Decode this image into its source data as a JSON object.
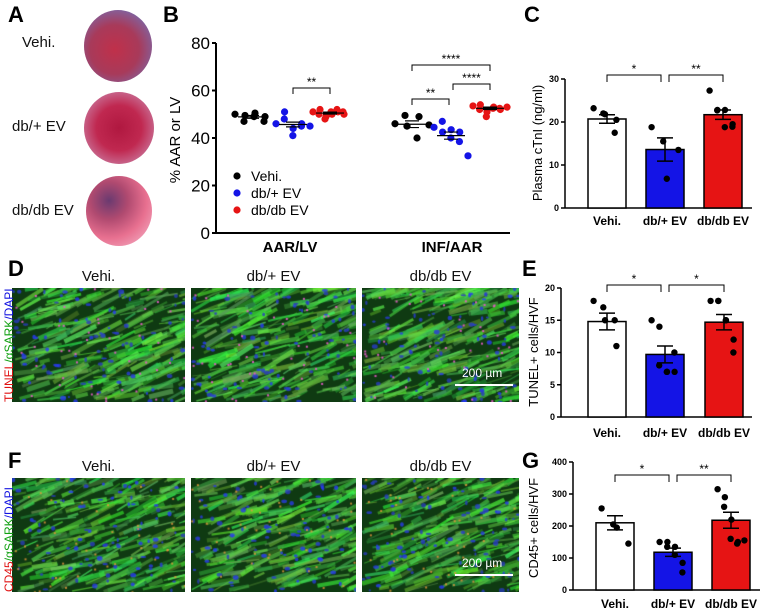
{
  "panels": {
    "A": "A",
    "B": "B",
    "C": "C",
    "D": "D",
    "E": "E",
    "F": "F",
    "G": "G"
  },
  "panel_a": {
    "rows": [
      "Vehi.",
      "db/+ EV",
      "db/db EV"
    ]
  },
  "panel_d": {
    "titles": [
      "Vehi.",
      "db/+ EV",
      "db/db EV"
    ],
    "stain": [
      "TUNEL",
      "/αSARK",
      "/DAPI"
    ],
    "scale": "200 µm"
  },
  "panel_f": {
    "titles": [
      "Vehi.",
      "db/+ EV",
      "db/db EV"
    ],
    "stain": [
      "CD45",
      "/αSARK",
      "/DAPI"
    ],
    "scale": "200 µm"
  },
  "colors": {
    "vehi": "#000000",
    "dbplus": "#1414e6",
    "dbdb": "#e61414"
  },
  "chart_data": [
    {
      "panel": "B",
      "type": "scatter",
      "ylabel": "% AAR or LV",
      "ylim": [
        0,
        80
      ],
      "yticks": [
        0,
        20,
        40,
        60,
        80
      ],
      "categories": [
        "AAR/LV",
        "INF/AAR"
      ],
      "legend": [
        "Vehi.",
        "db/+ EV",
        "db/db EV"
      ],
      "legend_position": "bottom-left",
      "series": [
        {
          "name": "Vehi.",
          "groups": [
            {
              "points": [
                50,
                47,
                49.5,
                49,
                50.5,
                47,
                49
              ],
              "mean": 48.9,
              "sem": 0.6
            },
            {
              "points": [
                46,
                49.5,
                45,
                40,
                49,
                45.5
              ],
              "mean": 45.8,
              "sem": 1.4
            }
          ]
        },
        {
          "name": "db/+ EV",
          "groups": [
            {
              "points": [
                46,
                48,
                51,
                41,
                44,
                45,
                46,
                45
              ],
              "mean": 45.7,
              "sem": 1.0
            },
            {
              "points": [
                44.5,
                47,
                42.5,
                40,
                43.5,
                38.5,
                42.5,
                32.5
              ],
              "mean": 41,
              "sem": 1.5
            }
          ]
        },
        {
          "name": "db/db EV",
          "groups": [
            {
              "points": [
                51,
                52,
                50,
                49,
                48,
                50,
                51,
                51,
                52,
                50,
                51
              ],
              "mean": 50.5,
              "sem": 0.4
            },
            {
              "points": [
                53.5,
                54,
                52,
                51,
                49,
                53,
                52.5,
                52,
                52.5,
                53
              ],
              "mean": 52.5,
              "sem": 0.5
            }
          ]
        }
      ],
      "significance": [
        {
          "category": "AAR/LV",
          "from": "db/+ EV",
          "to": "db/db EV",
          "label": "**"
        },
        {
          "category": "INF/AAR",
          "from": "Vehi.",
          "to": "db/+ EV",
          "label": "**"
        },
        {
          "category": "INF/AAR",
          "from": "db/+ EV",
          "to": "db/db EV",
          "label": "****"
        },
        {
          "category": "INF/AAR",
          "from": "Vehi.",
          "to": "db/db EV",
          "label": "****"
        }
      ]
    },
    {
      "panel": "C",
      "type": "bar",
      "ylabel": "Plasma cTnI (ng/ml)",
      "ylim": [
        0,
        30
      ],
      "yticks": [
        0,
        10,
        20,
        30
      ],
      "categories": [
        "Vehi.",
        "db/+ EV",
        "db/db EV"
      ],
      "means": [
        20.7,
        13.6,
        21.7
      ],
      "sem": [
        1.0,
        2.7,
        1.1
      ],
      "points": [
        [
          23.2,
          22,
          21.8,
          17.5,
          20.5
        ],
        [
          18.8,
          15.5,
          6.8,
          13.5
        ],
        [
          27.3,
          22.8,
          22.7,
          22.8,
          18.8,
          19.5,
          18.9
        ]
      ],
      "significance": [
        {
          "from": 0,
          "to": 1,
          "label": "*"
        },
        {
          "from": 1,
          "to": 2,
          "label": "**"
        }
      ]
    },
    {
      "panel": "E",
      "type": "bar",
      "ylabel": "TUNEL+ cells/HVF",
      "ylim": [
        0,
        20
      ],
      "yticks": [
        0,
        5,
        10,
        15,
        20
      ],
      "categories": [
        "Vehi.",
        "db/+ EV",
        "db/db EV"
      ],
      "means": [
        14.8,
        9.7,
        14.7
      ],
      "sem": [
        1.3,
        1.3,
        1.2
      ],
      "points": [
        [
          18,
          17,
          15,
          15,
          11
        ],
        [
          15,
          14,
          8,
          7,
          7,
          7,
          10
        ],
        [
          18,
          18,
          18,
          15,
          15,
          12,
          10
        ]
      ],
      "significance": [
        {
          "from": 0,
          "to": 1,
          "label": "*"
        },
        {
          "from": 1,
          "to": 2,
          "label": "*"
        }
      ]
    },
    {
      "panel": "G",
      "type": "bar",
      "ylabel": "CD45+ cells/HVF",
      "ylim": [
        0,
        400
      ],
      "yticks": [
        0,
        100,
        200,
        300,
        400
      ],
      "categories": [
        "Vehi.",
        "db/+ EV",
        "db/db EV"
      ],
      "means": [
        210,
        118,
        218
      ],
      "sem": [
        22,
        13,
        25
      ],
      "points": [
        [
          255,
          205,
          195,
          145
        ],
        [
          150,
          150,
          135,
          135,
          110,
          85,
          55
        ],
        [
          315,
          290,
          260,
          220,
          160,
          150,
          145,
          155
        ]
      ],
      "significance": [
        {
          "from": 0,
          "to": 1,
          "label": "*"
        },
        {
          "from": 1,
          "to": 2,
          "label": "**"
        }
      ]
    }
  ]
}
